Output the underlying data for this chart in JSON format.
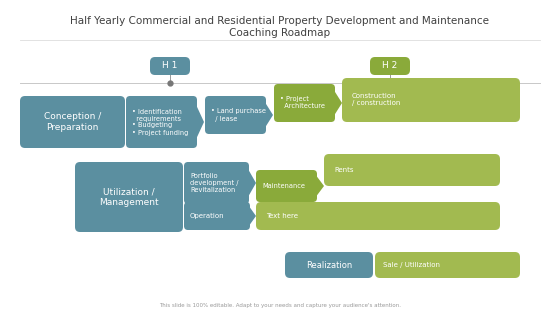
{
  "title": "Half Yearly Commercial and Residential Property Development and Maintenance\nCoaching Roadmap",
  "title_fontsize": 7.5,
  "bg_color": "#ffffff",
  "teal_color": "#5b8fa0",
  "green_color": "#8aaa3a",
  "green_light": "#a2ba50",
  "timeline_color": "#c8c8c8",
  "h1_label": "H 1",
  "h2_label": "H 2",
  "footer": "This slide is 100% editable. Adapt to your needs and capture your audience's attention.",
  "footer_fontsize": 4.0,
  "title_color": "#404040",
  "text_color_white": "#ffffff",
  "text_color_dark": "#404040"
}
